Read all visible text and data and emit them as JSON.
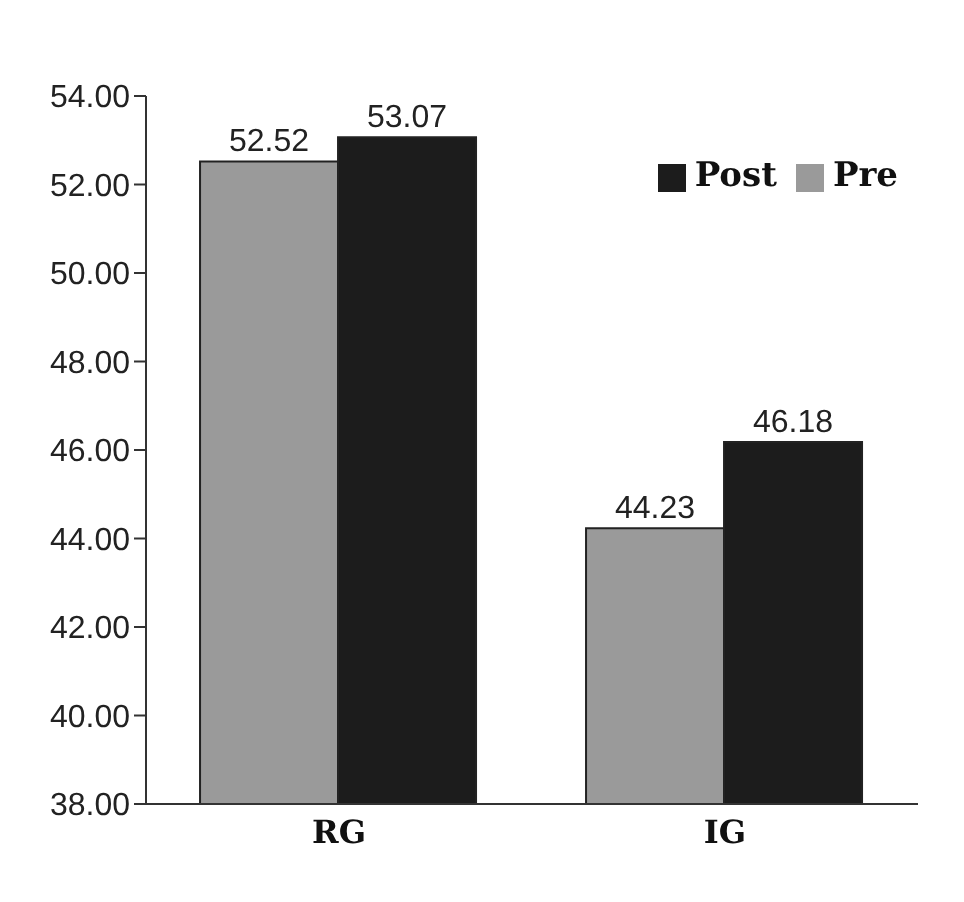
{
  "chart_data": {
    "type": "bar",
    "categories": [
      "RG",
      "IG"
    ],
    "series": [
      {
        "name": "Pre",
        "color": "#9a9a9a",
        "values": [
          52.52,
          44.23
        ]
      },
      {
        "name": "Post",
        "color": "#1c1c1c",
        "values": [
          53.07,
          46.18
        ]
      }
    ],
    "ylim": [
      38,
      54
    ],
    "yticks": [
      {
        "value": 38,
        "label": "38.00"
      },
      {
        "value": 40,
        "label": "40.00"
      },
      {
        "value": 42,
        "label": "42.00"
      },
      {
        "value": 44,
        "label": "44.00"
      },
      {
        "value": 46,
        "label": "46.00"
      },
      {
        "value": 48,
        "label": "48.00"
      },
      {
        "value": 50,
        "label": "50.00"
      },
      {
        "value": 52,
        "label": "52.00"
      },
      {
        "value": 54,
        "label": "54.00"
      }
    ],
    "grid": false,
    "legend": "top right",
    "data_labels": true
  }
}
